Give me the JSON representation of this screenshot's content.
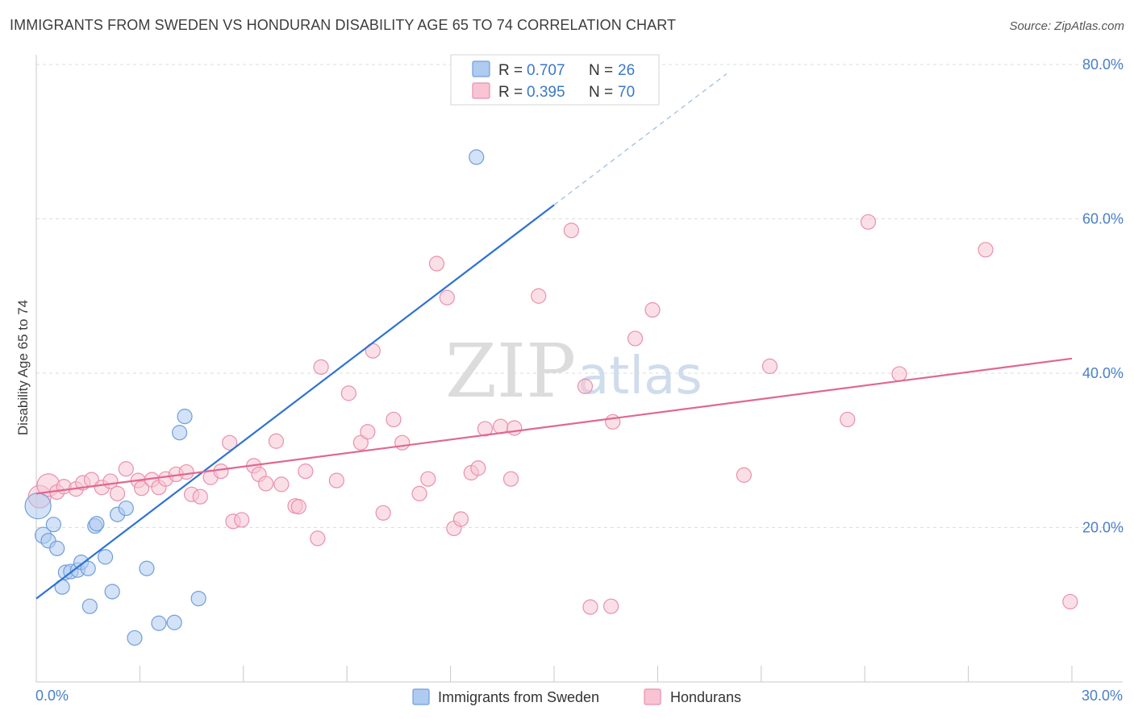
{
  "header": {
    "title": "IMMIGRANTS FROM SWEDEN VS HONDURAN DISABILITY AGE 65 TO 74 CORRELATION CHART",
    "source": "Source: ZipAtlas.com"
  },
  "watermark": {
    "zip": "ZIP",
    "atlas": "atlas"
  },
  "legend": {
    "rows": [
      {
        "r_label": "R =",
        "r_value": "0.707",
        "n_label": "N =",
        "n_value": "26"
      },
      {
        "r_label": "R =",
        "r_value": "0.395",
        "n_label": "N =",
        "n_value": "70"
      }
    ]
  },
  "bottom_legend": {
    "items": [
      {
        "label": "Immigrants from Sweden"
      },
      {
        "label": "Hondurans"
      }
    ]
  },
  "colors": {
    "sweden_fill": "#aecbf0",
    "sweden_stroke": "#6f9fdc",
    "sweden_line": "#2f72d2",
    "honduran_fill": "#f8c4d4",
    "honduran_stroke": "#e98fae",
    "honduran_line": "#e0688f",
    "grid": "#dddddd",
    "axis_text": "#4a7fc9"
  },
  "chart_data": {
    "type": "scatter",
    "title": "IMMIGRANTS FROM SWEDEN VS HONDURAN DISABILITY AGE 65 TO 74 CORRELATION CHART",
    "xlabel": "",
    "ylabel": "Disability Age 65 to 74",
    "xlim": [
      0,
      30
    ],
    "ylim": [
      0,
      80
    ],
    "x_tick_labels": [
      "0.0%",
      "30.0%"
    ],
    "y_ticks": [
      20,
      40,
      60,
      80
    ],
    "y_tick_labels": [
      "20.0%",
      "40.0%",
      "60.0%",
      "80.0%"
    ],
    "grid": true,
    "legend_position": "top-center",
    "series": [
      {
        "name": "Immigrants from Sweden",
        "R": 0.707,
        "N": 26,
        "trend": {
          "x0": 0,
          "y0": 10.8,
          "x1": 15,
          "y1": 61.8,
          "dash_x1": 20,
          "dash_y1": 78.8
        },
        "points": [
          [
            0.05,
            22.8,
            16
          ],
          [
            0.2,
            19.0,
            10
          ],
          [
            0.35,
            18.3,
            9
          ],
          [
            0.5,
            20.4,
            9
          ],
          [
            0.6,
            17.3,
            9
          ],
          [
            0.75,
            12.3,
            9
          ],
          [
            0.85,
            14.2,
            9
          ],
          [
            1.0,
            14.3,
            9
          ],
          [
            1.2,
            14.5,
            9
          ],
          [
            1.3,
            15.5,
            9
          ],
          [
            1.5,
            14.7,
            9
          ],
          [
            1.55,
            9.8,
            9
          ],
          [
            1.7,
            20.2,
            9
          ],
          [
            1.75,
            20.5,
            9
          ],
          [
            2.0,
            16.2,
            9
          ],
          [
            2.2,
            11.7,
            9
          ],
          [
            2.35,
            21.7,
            9
          ],
          [
            2.6,
            22.5,
            9
          ],
          [
            2.85,
            5.7,
            9
          ],
          [
            3.2,
            14.7,
            9
          ],
          [
            3.55,
            7.6,
            9
          ],
          [
            4.0,
            7.7,
            9
          ],
          [
            4.15,
            32.3,
            9
          ],
          [
            4.3,
            34.4,
            9
          ],
          [
            4.7,
            10.8,
            9
          ],
          [
            12.75,
            68.0,
            9
          ]
        ]
      },
      {
        "name": "Hondurans",
        "R": 0.395,
        "N": 70,
        "trend": {
          "x0": 0,
          "y0": 24.4,
          "x1": 30,
          "y1": 41.9
        },
        "points": [
          [
            0.1,
            24.0,
            14
          ],
          [
            0.35,
            25.5,
            14
          ],
          [
            0.6,
            24.6,
            9
          ],
          [
            0.8,
            25.3,
            9
          ],
          [
            1.15,
            25.0,
            9
          ],
          [
            1.35,
            25.8,
            9
          ],
          [
            1.6,
            26.2,
            9
          ],
          [
            1.9,
            25.2,
            9
          ],
          [
            2.15,
            26.0,
            9
          ],
          [
            2.35,
            24.4,
            9
          ],
          [
            2.6,
            27.6,
            9
          ],
          [
            2.95,
            26.1,
            9
          ],
          [
            3.05,
            25.1,
            9
          ],
          [
            3.35,
            26.2,
            9
          ],
          [
            3.55,
            25.2,
            9
          ],
          [
            3.75,
            26.3,
            9
          ],
          [
            4.05,
            26.9,
            9
          ],
          [
            4.35,
            27.2,
            9
          ],
          [
            4.5,
            24.3,
            9
          ],
          [
            4.75,
            24.0,
            9
          ],
          [
            5.05,
            26.5,
            9
          ],
          [
            5.35,
            27.3,
            9
          ],
          [
            5.6,
            31.0,
            9
          ],
          [
            5.7,
            20.8,
            9
          ],
          [
            5.95,
            21.0,
            9
          ],
          [
            6.3,
            28.0,
            9
          ],
          [
            6.45,
            26.9,
            9
          ],
          [
            6.65,
            25.7,
            9
          ],
          [
            6.95,
            31.2,
            9
          ],
          [
            7.1,
            25.6,
            9
          ],
          [
            7.5,
            22.8,
            9
          ],
          [
            7.6,
            22.7,
            9
          ],
          [
            7.8,
            27.3,
            9
          ],
          [
            8.15,
            18.6,
            9
          ],
          [
            8.25,
            40.8,
            9
          ],
          [
            8.7,
            26.1,
            9
          ],
          [
            9.05,
            37.4,
            9
          ],
          [
            9.4,
            31.0,
            9
          ],
          [
            9.6,
            32.4,
            9
          ],
          [
            9.75,
            42.9,
            9
          ],
          [
            10.05,
            21.9,
            9
          ],
          [
            10.35,
            34.0,
            9
          ],
          [
            10.6,
            31.0,
            9
          ],
          [
            11.1,
            24.4,
            9
          ],
          [
            11.35,
            26.3,
            9
          ],
          [
            11.6,
            54.2,
            9
          ],
          [
            11.9,
            49.8,
            9
          ],
          [
            12.1,
            19.9,
            9
          ],
          [
            12.3,
            21.1,
            9
          ],
          [
            12.6,
            27.1,
            9
          ],
          [
            12.8,
            27.7,
            9
          ],
          [
            13.0,
            32.8,
            9
          ],
          [
            13.45,
            33.1,
            9
          ],
          [
            13.75,
            26.3,
            9
          ],
          [
            13.85,
            32.9,
            9
          ],
          [
            14.55,
            50.0,
            9
          ],
          [
            15.5,
            58.5,
            9
          ],
          [
            15.9,
            38.3,
            9
          ],
          [
            16.05,
            9.7,
            9
          ],
          [
            16.65,
            9.8,
            9
          ],
          [
            16.7,
            33.7,
            9
          ],
          [
            17.35,
            44.5,
            9
          ],
          [
            17.85,
            48.2,
            9
          ],
          [
            20.5,
            26.8,
            9
          ],
          [
            21.25,
            40.9,
            9
          ],
          [
            23.5,
            34.0,
            9
          ],
          [
            24.1,
            59.6,
            9
          ],
          [
            25.0,
            39.9,
            9
          ],
          [
            27.5,
            56.0,
            9
          ],
          [
            29.95,
            10.4,
            9
          ]
        ]
      }
    ]
  }
}
